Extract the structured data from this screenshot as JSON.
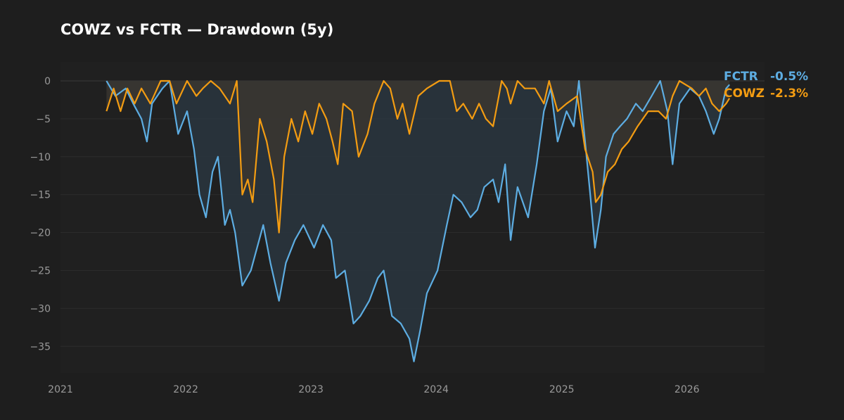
{
  "chart_data": {
    "type": "area",
    "title": "COWZ vs FCTR — Drawdown (5y)",
    "xlabel": "",
    "ylabel": "",
    "x_ticks": [
      "2021",
      "2022",
      "2023",
      "2024",
      "2025",
      "2026"
    ],
    "y_ticks": [
      "0",
      "−5",
      "−10",
      "−15",
      "−20",
      "−25",
      "−30",
      "−35"
    ],
    "ylim": [
      -38.5,
      2.5
    ],
    "xlim": [
      "2021-01-01",
      "2026-08-15"
    ],
    "grid": true,
    "legend": "right-outside",
    "background": "#1e1e1e",
    "plot_background": "#202020",
    "series": [
      {
        "name": "FCTR",
        "color": "#5dade2",
        "fill": "#2a3640",
        "last_label": "-0.5%",
        "points": [
          [
            "2021-05-15",
            0
          ],
          [
            "2021-06-10",
            -2
          ],
          [
            "2021-07-10",
            -1
          ],
          [
            "2021-08-01",
            -3
          ],
          [
            "2021-08-25",
            -5
          ],
          [
            "2021-09-10",
            -8
          ],
          [
            "2021-09-25",
            -3
          ],
          [
            "2021-10-25",
            -1
          ],
          [
            "2021-11-15",
            0
          ],
          [
            "2021-12-10",
            -7
          ],
          [
            "2022-01-05",
            -4
          ],
          [
            "2022-01-25",
            -9
          ],
          [
            "2022-02-10",
            -15
          ],
          [
            "2022-03-01",
            -18
          ],
          [
            "2022-03-20",
            -12
          ],
          [
            "2022-04-05",
            -10
          ],
          [
            "2022-04-25",
            -19
          ],
          [
            "2022-05-10",
            -17
          ],
          [
            "2022-05-25",
            -20
          ],
          [
            "2022-06-15",
            -27
          ],
          [
            "2022-07-10",
            -25
          ],
          [
            "2022-08-15",
            -19
          ],
          [
            "2022-09-05",
            -24
          ],
          [
            "2022-09-30",
            -29
          ],
          [
            "2022-10-20",
            -24
          ],
          [
            "2022-11-15",
            -21
          ],
          [
            "2022-12-10",
            -19
          ],
          [
            "2023-01-10",
            -22
          ],
          [
            "2023-02-05",
            -19
          ],
          [
            "2023-03-01",
            -21
          ],
          [
            "2023-03-15",
            -26
          ],
          [
            "2023-04-10",
            -25
          ],
          [
            "2023-05-05",
            -32
          ],
          [
            "2023-05-25",
            -31
          ],
          [
            "2023-06-20",
            -29
          ],
          [
            "2023-07-15",
            -26
          ],
          [
            "2023-08-01",
            -25
          ],
          [
            "2023-08-25",
            -31
          ],
          [
            "2023-09-20",
            -32
          ],
          [
            "2023-10-15",
            -34
          ],
          [
            "2023-10-28",
            -37
          ],
          [
            "2023-11-15",
            -33
          ],
          [
            "2023-12-05",
            -28
          ],
          [
            "2024-01-05",
            -25
          ],
          [
            "2024-02-01",
            -19
          ],
          [
            "2024-02-20",
            -15
          ],
          [
            "2024-03-15",
            -16
          ],
          [
            "2024-04-10",
            -18
          ],
          [
            "2024-04-30",
            -17
          ],
          [
            "2024-05-20",
            -14
          ],
          [
            "2024-06-15",
            -13
          ],
          [
            "2024-07-01",
            -16
          ],
          [
            "2024-07-20",
            -11
          ],
          [
            "2024-08-05",
            -21
          ],
          [
            "2024-08-25",
            -14
          ],
          [
            "2024-09-25",
            -18
          ],
          [
            "2024-10-20",
            -11
          ],
          [
            "2024-11-10",
            -4
          ],
          [
            "2024-11-30",
            -1
          ],
          [
            "2024-12-20",
            -8
          ],
          [
            "2025-01-15",
            -4
          ],
          [
            "2025-02-05",
            -6
          ],
          [
            "2025-02-20",
            0
          ],
          [
            "2025-03-10",
            -8
          ],
          [
            "2025-03-25",
            -15
          ],
          [
            "2025-04-08",
            -22
          ],
          [
            "2025-04-25",
            -17
          ],
          [
            "2025-05-10",
            -10
          ],
          [
            "2025-06-01",
            -7
          ],
          [
            "2025-06-20",
            -6
          ],
          [
            "2025-07-10",
            -5
          ],
          [
            "2025-08-05",
            -3
          ],
          [
            "2025-08-25",
            -4
          ],
          [
            "2025-09-20",
            -2
          ],
          [
            "2025-10-15",
            0
          ],
          [
            "2025-11-05",
            -4
          ],
          [
            "2025-11-20",
            -11
          ],
          [
            "2025-12-10",
            -3
          ],
          [
            "2026-01-10",
            -1
          ],
          [
            "2026-02-05",
            -2
          ],
          [
            "2026-02-25",
            -4
          ],
          [
            "2026-03-20",
            -7
          ],
          [
            "2026-04-05",
            -5
          ],
          [
            "2026-04-25",
            -1
          ],
          [
            "2026-05-05",
            -0.5
          ]
        ]
      },
      {
        "name": "COWZ",
        "color": "#f39c12",
        "fill": "#3a3630",
        "last_label": "-2.3%",
        "points": [
          [
            "2021-05-15",
            -4
          ],
          [
            "2021-06-05",
            -1
          ],
          [
            "2021-06-25",
            -4
          ],
          [
            "2021-07-15",
            -1
          ],
          [
            "2021-08-05",
            -3
          ],
          [
            "2021-08-25",
            -1
          ],
          [
            "2021-09-20",
            -3
          ],
          [
            "2021-10-20",
            0
          ],
          [
            "2021-11-15",
            0
          ],
          [
            "2021-12-05",
            -3
          ],
          [
            "2022-01-05",
            0
          ],
          [
            "2022-02-01",
            -2
          ],
          [
            "2022-02-20",
            -1
          ],
          [
            "2022-03-15",
            0
          ],
          [
            "2022-04-10",
            -1
          ],
          [
            "2022-05-10",
            -3
          ],
          [
            "2022-05-30",
            0
          ],
          [
            "2022-06-15",
            -15
          ],
          [
            "2022-07-01",
            -13
          ],
          [
            "2022-07-15",
            -16
          ],
          [
            "2022-08-05",
            -5
          ],
          [
            "2022-08-25",
            -8
          ],
          [
            "2022-09-15",
            -13
          ],
          [
            "2022-09-30",
            -20
          ],
          [
            "2022-10-15",
            -10
          ],
          [
            "2022-11-05",
            -5
          ],
          [
            "2022-11-25",
            -8
          ],
          [
            "2022-12-15",
            -4
          ],
          [
            "2023-01-05",
            -7
          ],
          [
            "2023-01-25",
            -3
          ],
          [
            "2023-02-15",
            -5
          ],
          [
            "2023-03-05",
            -8
          ],
          [
            "2023-03-20",
            -11
          ],
          [
            "2023-04-05",
            -3
          ],
          [
            "2023-05-01",
            -4
          ],
          [
            "2023-05-20",
            -10
          ],
          [
            "2023-06-15",
            -7
          ],
          [
            "2023-07-05",
            -3
          ],
          [
            "2023-08-01",
            0
          ],
          [
            "2023-08-20",
            -1
          ],
          [
            "2023-09-10",
            -5
          ],
          [
            "2023-09-25",
            -3
          ],
          [
            "2023-10-15",
            -7
          ],
          [
            "2023-11-10",
            -2
          ],
          [
            "2023-12-05",
            -1
          ],
          [
            "2024-01-10",
            0
          ],
          [
            "2024-02-10",
            0
          ],
          [
            "2024-03-01",
            -4
          ],
          [
            "2024-03-20",
            -3
          ],
          [
            "2024-04-15",
            -5
          ],
          [
            "2024-05-05",
            -3
          ],
          [
            "2024-05-25",
            -5
          ],
          [
            "2024-06-15",
            -6
          ],
          [
            "2024-07-10",
            0
          ],
          [
            "2024-07-25",
            -1
          ],
          [
            "2024-08-05",
            -3
          ],
          [
            "2024-08-25",
            0
          ],
          [
            "2024-09-15",
            -1
          ],
          [
            "2024-10-15",
            -1
          ],
          [
            "2024-11-10",
            -3
          ],
          [
            "2024-11-25",
            0
          ],
          [
            "2024-12-20",
            -4
          ],
          [
            "2025-01-15",
            -3
          ],
          [
            "2025-02-15",
            -2
          ],
          [
            "2025-03-10",
            -9
          ],
          [
            "2025-04-01",
            -12
          ],
          [
            "2025-04-10",
            -16
          ],
          [
            "2025-04-25",
            -15
          ],
          [
            "2025-05-15",
            -12
          ],
          [
            "2025-06-05",
            -11
          ],
          [
            "2025-06-25",
            -9
          ],
          [
            "2025-07-15",
            -8
          ],
          [
            "2025-08-10",
            -6
          ],
          [
            "2025-09-10",
            -4
          ],
          [
            "2025-10-10",
            -4
          ],
          [
            "2025-11-01",
            -5
          ],
          [
            "2025-11-20",
            -2
          ],
          [
            "2025-12-10",
            0
          ],
          [
            "2026-01-15",
            -1
          ],
          [
            "2026-02-05",
            -2
          ],
          [
            "2026-02-25",
            -1
          ],
          [
            "2026-03-15",
            -3
          ],
          [
            "2026-04-05",
            -4
          ],
          [
            "2026-04-25",
            -3
          ],
          [
            "2026-05-05",
            -2.3
          ]
        ]
      }
    ]
  }
}
